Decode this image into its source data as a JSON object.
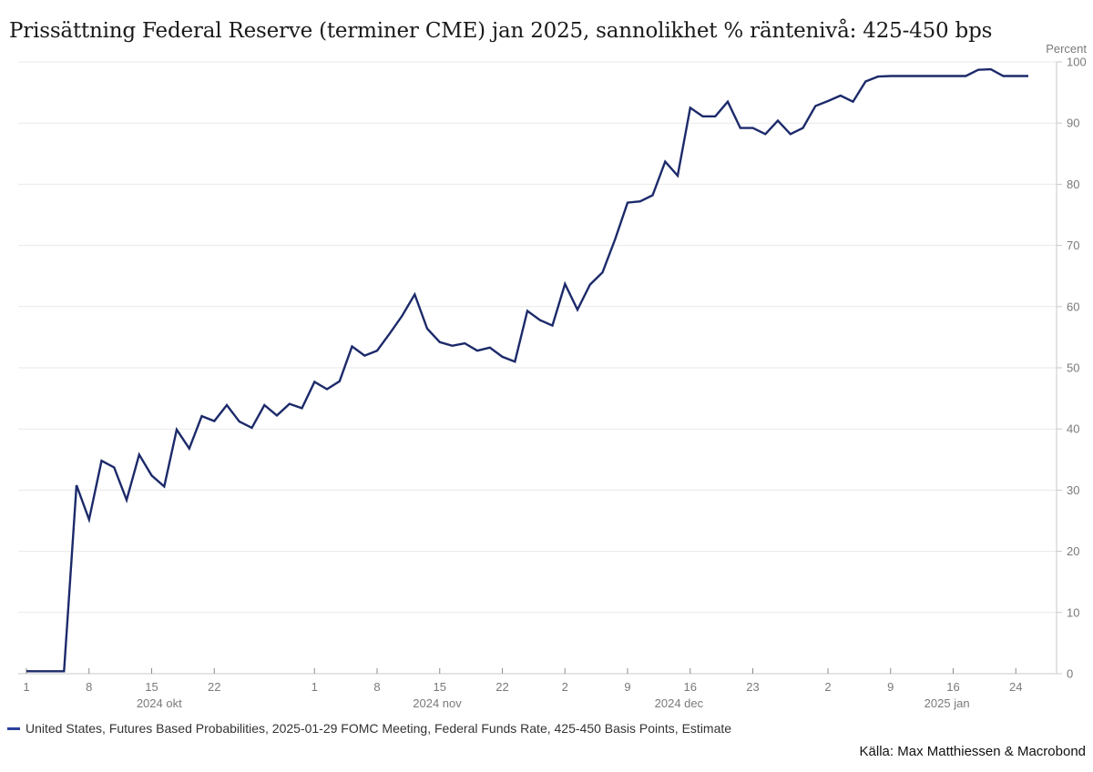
{
  "header": {
    "title": "Prissättning Federal Reserve (terminer CME) jan 2025, sannolikhet % räntenivå: 425-450 bps"
  },
  "source": {
    "text": "Källa: Max Matthiessen & Macrobond"
  },
  "colors": {
    "line": "#1c2a6a",
    "legend_marker": "#2c3f99",
    "grid": "#e9e9e9",
    "axis": "#c9c9c9",
    "tick": "#8c8c8c",
    "tick_label": "#7a7a7a",
    "title": "#1a1a1a",
    "legend_text": "#333333",
    "source_text": "#111111"
  },
  "chart_data": {
    "type": "line",
    "title": "Prissättning Federal Reserve (terminer CME) jan 2025, sannolikhet % räntenivå: 425-450 bps",
    "xlabel": "",
    "ylabel": "Percent",
    "ylim": [
      0,
      100
    ],
    "y_tick_step": 10,
    "grid": "horizontal-only",
    "legend_position": "bottom-left",
    "series": [
      {
        "name": "United States, Futures Based Probabilities, 2025-01-29 FOMC Meeting, Federal Funds Rate, 425-450 Basis Points, Estimate",
        "color": "#1c2a6a",
        "dates": [
          "2024-10-01",
          "2024-10-02",
          "2024-10-03",
          "2024-10-04",
          "2024-10-07",
          "2024-10-08",
          "2024-10-09",
          "2024-10-10",
          "2024-10-11",
          "2024-10-14",
          "2024-10-15",
          "2024-10-16",
          "2024-10-17",
          "2024-10-18",
          "2024-10-21",
          "2024-10-22",
          "2024-10-23",
          "2024-10-24",
          "2024-10-25",
          "2024-10-28",
          "2024-10-29",
          "2024-10-30",
          "2024-10-31",
          "2024-11-01",
          "2024-11-04",
          "2024-11-05",
          "2024-11-06",
          "2024-11-07",
          "2024-11-08",
          "2024-11-11",
          "2024-11-12",
          "2024-11-13",
          "2024-11-14",
          "2024-11-15",
          "2024-11-18",
          "2024-11-19",
          "2024-11-20",
          "2024-11-21",
          "2024-11-22",
          "2024-11-25",
          "2024-11-26",
          "2024-11-27",
          "2024-11-29",
          "2024-12-02",
          "2024-12-03",
          "2024-12-04",
          "2024-12-05",
          "2024-12-06",
          "2024-12-09",
          "2024-12-10",
          "2024-12-11",
          "2024-12-12",
          "2024-12-13",
          "2024-12-16",
          "2024-12-17",
          "2024-12-18",
          "2024-12-19",
          "2024-12-20",
          "2024-12-23",
          "2024-12-24",
          "2024-12-26",
          "2024-12-27",
          "2024-12-30",
          "2024-12-31",
          "2025-01-02",
          "2025-01-03",
          "2025-01-06",
          "2025-01-07",
          "2025-01-08",
          "2025-01-09",
          "2025-01-10",
          "2025-01-13",
          "2025-01-14",
          "2025-01-15",
          "2025-01-16",
          "2025-01-17",
          "2025-01-21",
          "2025-01-22",
          "2025-01-23",
          "2025-01-24",
          "2025-01-27"
        ],
        "values": [
          0.4,
          0.4,
          0.4,
          0.4,
          30.8,
          25.2,
          34.8,
          33.7,
          28.4,
          35.8,
          32.4,
          30.6,
          39.9,
          36.8,
          42.1,
          41.3,
          43.9,
          41.2,
          40.2,
          43.9,
          42.2,
          44.1,
          43.4,
          47.7,
          46.5,
          47.8,
          53.5,
          52.0,
          52.8,
          55.6,
          58.5,
          62.0,
          56.4,
          54.2,
          53.6,
          54.0,
          52.8,
          53.3,
          51.8,
          51.0,
          59.3,
          57.8,
          56.9,
          63.7,
          59.5,
          63.6,
          65.6,
          71.0,
          77.0,
          77.2,
          78.2,
          83.7,
          81.4,
          92.5,
          91.1,
          91.1,
          93.5,
          89.2,
          89.2,
          88.2,
          90.4,
          88.2,
          89.2,
          92.8,
          93.6,
          94.5,
          93.5,
          96.8,
          97.6,
          97.7,
          97.7,
          97.7,
          97.7,
          97.7,
          97.7,
          97.7,
          98.7,
          98.8,
          97.7,
          97.7,
          97.7
        ]
      }
    ],
    "x_ticks": [
      {
        "index": 0,
        "label": "1"
      },
      {
        "index": 5,
        "label": "8"
      },
      {
        "index": 10,
        "label": "15"
      },
      {
        "index": 15,
        "label": "22"
      },
      {
        "index": 23,
        "label": "1"
      },
      {
        "index": 28,
        "label": "8"
      },
      {
        "index": 33,
        "label": "15"
      },
      {
        "index": 38,
        "label": "22"
      },
      {
        "index": 43,
        "label": "2"
      },
      {
        "index": 48,
        "label": "9"
      },
      {
        "index": 53,
        "label": "16"
      },
      {
        "index": 58,
        "label": "23"
      },
      {
        "index": 64,
        "label": "2"
      },
      {
        "index": 69,
        "label": "9"
      },
      {
        "index": 74,
        "label": "16"
      },
      {
        "index": 79,
        "label": "24"
      }
    ],
    "x_month_labels": [
      {
        "index": 10.6,
        "label": "2024 okt"
      },
      {
        "index": 32.8,
        "label": "2024 nov"
      },
      {
        "index": 52.1,
        "label": "2024 dec"
      },
      {
        "index": 73.5,
        "label": "2025 jan"
      }
    ]
  }
}
